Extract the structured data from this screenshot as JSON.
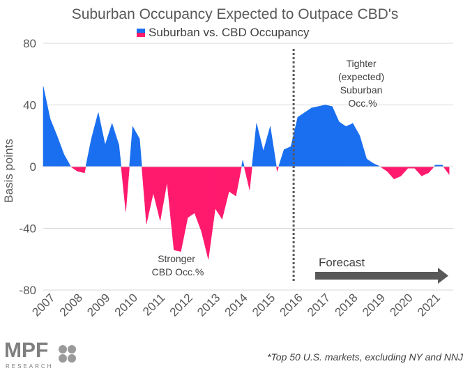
{
  "chart_data": {
    "type": "area",
    "title": "Suburban Occupancy Expected to Outpace CBD's",
    "legend": "Suburban vs. CBD Occupancy",
    "ylabel": "Basis points",
    "ylim": [
      -80,
      80
    ],
    "yticks": [
      80,
      40,
      0,
      -40,
      -80
    ],
    "xticks": [
      "2007",
      "2008",
      "2009",
      "2010",
      "2011",
      "2012",
      "2013",
      "2014",
      "2015",
      "2016",
      "2017",
      "2018",
      "2019",
      "2020",
      "2021"
    ],
    "x_start": 2007.0,
    "x_step": 0.25,
    "values": [
      52,
      31,
      20,
      8,
      0,
      -3,
      -4,
      18,
      35,
      14,
      28,
      14,
      -29,
      26,
      18,
      -37,
      -17,
      -35,
      -10,
      -54,
      -55,
      -33,
      -30,
      -42,
      -60,
      -27,
      -34,
      -16,
      -19,
      4,
      -15,
      28,
      10,
      26,
      -3,
      11,
      13,
      32,
      35,
      38,
      39,
      40,
      39,
      29,
      26,
      28,
      20,
      5,
      2,
      0,
      -3,
      -8,
      -6,
      -1,
      -1,
      -6,
      -4,
      1,
      1,
      -5
    ],
    "colors": {
      "positive": "#1a6ff0",
      "negative": "#ff1a6e"
    },
    "forecast_start": 2016.1,
    "annotations": {
      "tighter": [
        "Tighter",
        "(expected)",
        "Suburban",
        "Occ.%"
      ],
      "stronger": [
        "Stronger",
        "CBD Occ.%"
      ],
      "forecast": "Forecast"
    }
  },
  "footnote": "*Top  50 U.S. markets, excluding  NY and NNJ",
  "logo": {
    "main": "MPF",
    "sub": "RESEARCH"
  }
}
